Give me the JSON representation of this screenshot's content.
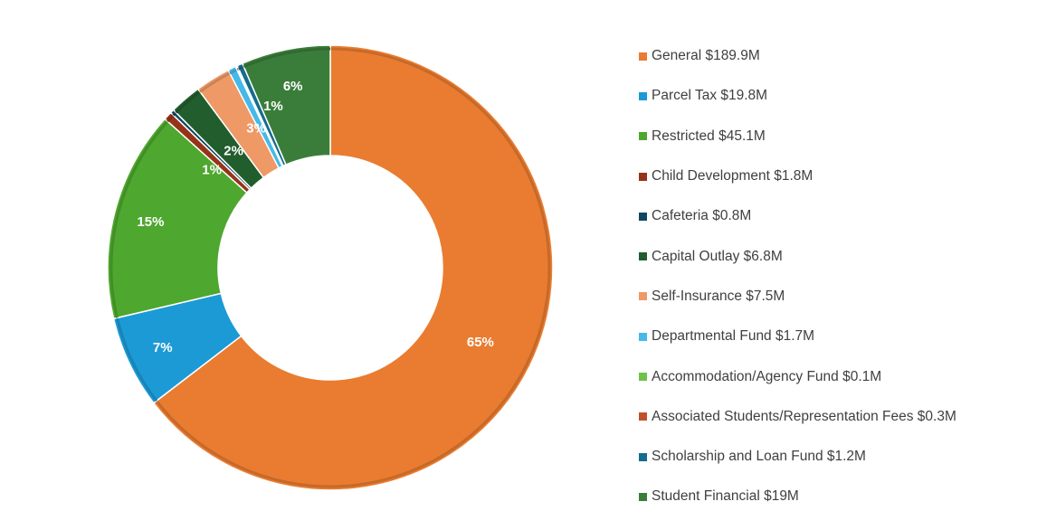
{
  "chart_data": {
    "type": "donut",
    "title": "",
    "series": [
      {
        "name": "General",
        "value": 189.9,
        "label": "General $189.9M",
        "percent_label": "65%",
        "color": "#E97C30"
      },
      {
        "name": "Parcel Tax",
        "value": 19.8,
        "label": "Parcel Tax $19.8M",
        "percent_label": "7%",
        "color": "#1C9AD6"
      },
      {
        "name": "Restricted",
        "value": 45.1,
        "label": "Restricted $45.1M",
        "percent_label": "15%",
        "color": "#4EA72E"
      },
      {
        "name": "Child Development",
        "value": 1.8,
        "label": "Child Development $1.8M",
        "percent_label": "1%",
        "color": "#953419"
      },
      {
        "name": "Cafeteria",
        "value": 0.8,
        "label": "Cafeteria $0.8M",
        "percent_label": "",
        "color": "#0F4761"
      },
      {
        "name": "Capital Outlay",
        "value": 6.8,
        "label": "Capital Outlay $6.8M",
        "percent_label": "2%",
        "color": "#215D2D"
      },
      {
        "name": "Self-Insurance",
        "value": 7.5,
        "label": "Self-Insurance $7.5M",
        "percent_label": "3%",
        "color": "#EE9966"
      },
      {
        "name": "Departmental Fund",
        "value": 1.7,
        "label": "Departmental Fund $1.7M",
        "percent_label": "1%",
        "color": "#45B9E8"
      },
      {
        "name": "Accommodation/Agency Fund",
        "value": 0.1,
        "label": "Accommodation/Agency Fund $0.1M",
        "percent_label": "",
        "color": "#6CC24A"
      },
      {
        "name": "Associated Students/Representation Fees",
        "value": 0.3,
        "label": "Associated Students/Representation Fees $0.3M",
        "percent_label": "",
        "color": "#C0502A"
      },
      {
        "name": "Scholarship and Loan Fund",
        "value": 1.2,
        "label": "Scholarship and Loan Fund $1.2M",
        "percent_label": "",
        "color": "#146C8E"
      },
      {
        "name": "Student Financial",
        "value": 19.0,
        "label": "Student Financial $19M",
        "percent_label": "6%",
        "color": "#3A7D3A"
      }
    ],
    "legend_position": "right"
  }
}
